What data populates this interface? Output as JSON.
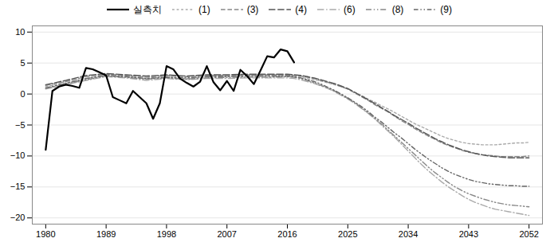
{
  "chart_data": {
    "type": "line",
    "xlim": [
      1978,
      2054
    ],
    "xticks": [
      1980,
      1989,
      1998,
      2007,
      2016,
      2025,
      2034,
      2043,
      2052
    ],
    "ylim": [
      -21,
      11
    ],
    "yticks": [
      10,
      5,
      0,
      -5,
      -10,
      -15,
      -20
    ],
    "grid": true,
    "legend": "top",
    "series": [
      {
        "name": "실측치",
        "color": "#000000",
        "line_style": "solid",
        "x": [
          1980,
          1981,
          1982,
          1983,
          1984,
          1985,
          1986,
          1987,
          1988,
          1989,
          1990,
          1991,
          1992,
          1993,
          1994,
          1995,
          1996,
          1997,
          1998,
          1999,
          2000,
          2001,
          2002,
          2003,
          2004,
          2005,
          2006,
          2007,
          2008,
          2009,
          2010,
          2011,
          2012,
          2013,
          2014,
          2015,
          2016,
          2017
        ],
        "values": [
          -9.0,
          0.5,
          1.2,
          1.5,
          1.3,
          1.0,
          4.2,
          4.0,
          3.5,
          3.0,
          -0.5,
          -1.0,
          -1.5,
          0.5,
          -0.5,
          -1.5,
          -4.0,
          -1.5,
          4.5,
          4.0,
          2.5,
          1.8,
          1.2,
          2.0,
          4.5,
          1.9,
          0.6,
          2.1,
          0.5,
          3.9,
          2.9,
          1.6,
          3.8,
          6.1,
          5.9,
          7.2,
          6.9,
          5.1
        ]
      },
      {
        "name": "(1)",
        "color": "#aaaaaa",
        "line_style": "dotted",
        "x": [
          1980,
          1983,
          1986,
          1989,
          1992,
          1995,
          1998,
          2001,
          2004,
          2007,
          2010,
          2013,
          2016,
          2017,
          2018,
          2019,
          2020,
          2021,
          2022,
          2023,
          2024,
          2025,
          2026,
          2027,
          2028,
          2029,
          2030,
          2031,
          2032,
          2033,
          2034,
          2035,
          2036,
          2037,
          2038,
          2039,
          2040,
          2041,
          2042,
          2043,
          2044,
          2045,
          2046,
          2047,
          2048,
          2049,
          2050,
          2051,
          2052
        ],
        "values": [
          1.2,
          1.8,
          2.5,
          3.0,
          2.8,
          2.5,
          2.8,
          2.5,
          2.8,
          2.8,
          2.9,
          2.9,
          2.9,
          2.8,
          2.7,
          2.5,
          2.3,
          2.1,
          1.8,
          1.5,
          1.2,
          0.8,
          0.3,
          -0.2,
          -0.8,
          -1.3,
          -1.9,
          -2.4,
          -3.0,
          -3.6,
          -4.2,
          -4.8,
          -5.3,
          -5.8,
          -6.3,
          -6.8,
          -7.2,
          -7.5,
          -7.8,
          -8.0,
          -8.1,
          -8.2,
          -8.2,
          -8.2,
          -8.1,
          -8.0,
          -7.9,
          -7.9,
          -7.8
        ]
      },
      {
        "name": "(3)",
        "color": "#888888",
        "line_style": "dashed",
        "x": [
          1980,
          1983,
          1986,
          1989,
          1992,
          1995,
          1998,
          2001,
          2004,
          2007,
          2010,
          2013,
          2016,
          2017,
          2018,
          2019,
          2020,
          2021,
          2022,
          2023,
          2024,
          2025,
          2026,
          2027,
          2028,
          2029,
          2030,
          2031,
          2032,
          2033,
          2034,
          2035,
          2036,
          2037,
          2038,
          2039,
          2040,
          2041,
          2042,
          2043,
          2044,
          2045,
          2046,
          2047,
          2048,
          2049,
          2050,
          2051,
          2052
        ],
        "values": [
          1.4,
          2.0,
          2.8,
          3.2,
          3.0,
          2.7,
          3.0,
          2.8,
          3.0,
          3.0,
          3.1,
          3.1,
          3.1,
          3.0,
          2.9,
          2.7,
          2.5,
          2.2,
          1.9,
          1.6,
          1.2,
          0.8,
          0.2,
          -0.4,
          -1.0,
          -1.7,
          -2.3,
          -2.9,
          -3.6,
          -4.3,
          -4.9,
          -5.6,
          -6.2,
          -6.8,
          -7.3,
          -7.9,
          -8.3,
          -8.7,
          -9.1,
          -9.4,
          -9.6,
          -9.8,
          -9.9,
          -10.0,
          -10.1,
          -10.1,
          -10.1,
          -10.1,
          -10.0
        ]
      },
      {
        "name": "(4)",
        "color": "#555555",
        "line_style": "longdash",
        "x": [
          1980,
          1983,
          1986,
          1989,
          1992,
          1995,
          1998,
          2001,
          2004,
          2007,
          2010,
          2013,
          2016,
          2017,
          2018,
          2019,
          2020,
          2021,
          2022,
          2023,
          2024,
          2025,
          2026,
          2027,
          2028,
          2029,
          2030,
          2031,
          2032,
          2033,
          2034,
          2035,
          2036,
          2037,
          2038,
          2039,
          2040,
          2041,
          2042,
          2043,
          2044,
          2045,
          2046,
          2047,
          2048,
          2049,
          2050,
          2051,
          2052
        ],
        "values": [
          1.5,
          2.2,
          3.0,
          3.3,
          3.1,
          2.9,
          3.1,
          2.9,
          3.1,
          3.1,
          3.2,
          3.2,
          3.2,
          3.1,
          3.0,
          2.8,
          2.6,
          2.3,
          2.0,
          1.7,
          1.3,
          0.9,
          0.3,
          -0.3,
          -0.9,
          -1.5,
          -2.2,
          -2.8,
          -3.5,
          -4.1,
          -4.7,
          -5.4,
          -6.0,
          -6.6,
          -7.2,
          -7.7,
          -8.2,
          -8.6,
          -9.0,
          -9.3,
          -9.6,
          -9.8,
          -10.0,
          -10.1,
          -10.2,
          -10.3,
          -10.3,
          -10.3,
          -10.3
        ]
      },
      {
        "name": "(6)",
        "color": "#aaaaaa",
        "line_style": "dashdot",
        "x": [
          1980,
          1983,
          1986,
          1989,
          1992,
          1995,
          1998,
          2001,
          2004,
          2007,
          2010,
          2013,
          2016,
          2017,
          2018,
          2019,
          2020,
          2021,
          2022,
          2023,
          2024,
          2025,
          2026,
          2027,
          2028,
          2029,
          2030,
          2031,
          2032,
          2033,
          2034,
          2035,
          2036,
          2037,
          2038,
          2039,
          2040,
          2041,
          2042,
          2043,
          2044,
          2045,
          2046,
          2047,
          2048,
          2049,
          2050,
          2051,
          2052
        ],
        "values": [
          0.8,
          1.5,
          2.2,
          2.8,
          2.6,
          2.2,
          2.5,
          2.3,
          2.5,
          2.5,
          2.6,
          2.6,
          2.6,
          2.5,
          2.3,
          2.0,
          1.7,
          1.3,
          0.9,
          0.4,
          -0.2,
          -0.8,
          -1.5,
          -2.3,
          -3.1,
          -4.0,
          -5.0,
          -6.0,
          -7.0,
          -8.1,
          -9.2,
          -10.3,
          -11.4,
          -12.4,
          -13.3,
          -14.2,
          -15.0,
          -15.7,
          -16.4,
          -17.0,
          -17.5,
          -17.9,
          -18.3,
          -18.6,
          -18.8,
          -19.0,
          -19.2,
          -19.4,
          -19.6
        ]
      },
      {
        "name": "(8)",
        "color": "#888888",
        "line_style": "dashdotdot",
        "x": [
          1980,
          1983,
          1986,
          1989,
          1992,
          1995,
          1998,
          2001,
          2004,
          2007,
          2010,
          2013,
          2016,
          2017,
          2018,
          2019,
          2020,
          2021,
          2022,
          2023,
          2024,
          2025,
          2026,
          2027,
          2028,
          2029,
          2030,
          2031,
          2032,
          2033,
          2034,
          2035,
          2036,
          2037,
          2038,
          2039,
          2040,
          2041,
          2042,
          2043,
          2044,
          2045,
          2046,
          2047,
          2048,
          2049,
          2050,
          2051,
          2052
        ],
        "values": [
          0.9,
          1.6,
          2.3,
          2.9,
          2.7,
          2.4,
          2.6,
          2.4,
          2.6,
          2.7,
          2.7,
          2.7,
          2.8,
          2.7,
          2.5,
          2.2,
          1.8,
          1.4,
          1.0,
          0.5,
          -0.1,
          -0.7,
          -1.4,
          -2.2,
          -3.0,
          -3.9,
          -4.8,
          -5.8,
          -6.8,
          -7.8,
          -8.8,
          -9.8,
          -10.8,
          -11.8,
          -12.7,
          -13.5,
          -14.3,
          -15.0,
          -15.6,
          -16.1,
          -16.5,
          -16.9,
          -17.2,
          -17.5,
          -17.7,
          -17.9,
          -18.0,
          -18.1,
          -18.2
        ]
      },
      {
        "name": "(9)",
        "color": "#666666",
        "line_style": "dashdotdot2",
        "x": [
          1980,
          1983,
          1986,
          1989,
          1992,
          1995,
          1998,
          2001,
          2004,
          2007,
          2010,
          2013,
          2016,
          2017,
          2018,
          2019,
          2020,
          2021,
          2022,
          2023,
          2024,
          2025,
          2026,
          2027,
          2028,
          2029,
          2030,
          2031,
          2032,
          2033,
          2034,
          2035,
          2036,
          2037,
          2038,
          2039,
          2040,
          2041,
          2042,
          2043,
          2044,
          2045,
          2046,
          2047,
          2048,
          2049,
          2050,
          2051,
          2052
        ],
        "values": [
          1.0,
          1.7,
          2.5,
          3.0,
          2.8,
          2.5,
          2.7,
          2.6,
          2.8,
          2.8,
          2.9,
          2.9,
          2.9,
          2.8,
          2.6,
          2.3,
          2.0,
          1.6,
          1.1,
          0.6,
          0.0,
          -0.6,
          -1.3,
          -2.0,
          -2.8,
          -3.7,
          -4.5,
          -5.4,
          -6.3,
          -7.1,
          -8.0,
          -8.9,
          -9.7,
          -10.5,
          -11.2,
          -11.9,
          -12.5,
          -13.0,
          -13.4,
          -13.8,
          -14.1,
          -14.3,
          -14.5,
          -14.6,
          -14.7,
          -14.8,
          -14.8,
          -14.9,
          -14.9
        ]
      }
    ]
  }
}
